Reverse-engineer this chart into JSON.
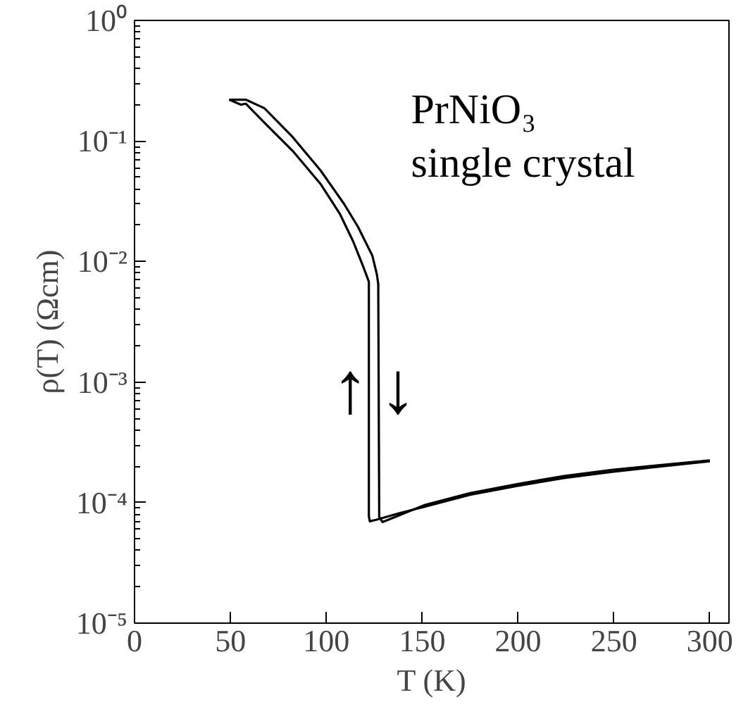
{
  "chart_data": {
    "type": "line",
    "xlabel": "T (K)",
    "ylabel": "ρ(T) (Ωcm)",
    "log": "y",
    "grid": false,
    "line_style": "solid",
    "xlim": [
      0,
      310
    ],
    "xticks": [
      0,
      50,
      100,
      150,
      200,
      250,
      300
    ],
    "ylim": [
      1e-05,
      1
    ],
    "yticks": [
      {
        "value": 1e-05,
        "label": "10⁻⁵"
      },
      {
        "value": 0.0001,
        "label": "10⁻⁴"
      },
      {
        "value": 0.001,
        "label": "10⁻³"
      },
      {
        "value": 0.01,
        "label": "10⁻²"
      },
      {
        "value": 0.1,
        "label": "10⁻¹"
      },
      {
        "value": 1,
        "label": "10⁰"
      }
    ],
    "series": [
      {
        "color": "#000000",
        "x": [
          49.4,
          58,
          67.7,
          82.4,
          97,
          109.3,
          116.6,
          124,
          126.4,
          127.1,
          127.6,
          129.3,
          138.6,
          150.9,
          175,
          200,
          224,
          249,
          273,
          300
        ],
        "values": [
          0.22,
          0.22,
          0.187,
          0.108,
          0.057,
          0.03,
          0.0193,
          0.0112,
          0.0078,
          0.0065,
          7.6e-05,
          6.9e-05,
          7.9e-05,
          9.5e-05,
          0.00012,
          0.000143,
          0.000166,
          0.000187,
          0.000204,
          0.000224
        ]
      },
      {
        "color": "#000000",
        "x": [
          300,
          273,
          249,
          224,
          200,
          175,
          150.9,
          138.6,
          126,
          122.7,
          122.2,
          122.2,
          119,
          114,
          107,
          97,
          82.4,
          67.7,
          58,
          55.5,
          49.4
        ],
        "values": [
          0.00022,
          0.000198,
          0.00018,
          0.00016,
          0.000138,
          0.000116,
          9.2e-05,
          8.2e-05,
          7.2e-05,
          7e-05,
          7.7e-05,
          0.0068,
          0.0093,
          0.0147,
          0.025,
          0.044,
          0.083,
          0.142,
          0.204,
          0.2,
          0.22
        ]
      }
    ],
    "annotations": [
      "↑",
      "↓",
      "PrNiO₃\nsingle crystal"
    ]
  }
}
